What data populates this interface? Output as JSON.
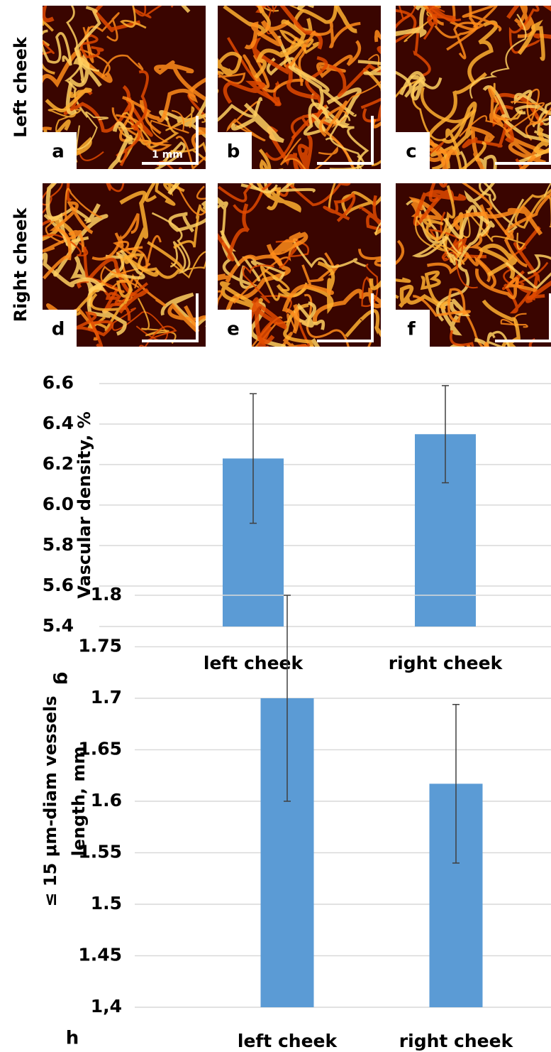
{
  "row_labels": [
    "Left cheek",
    "Right cheek"
  ],
  "panels": [
    "a",
    "b",
    "c",
    "d",
    "e",
    "f"
  ],
  "scale_label": "1 mm",
  "chart_data": [
    {
      "type": "bar",
      "panel": "g",
      "ylabel": [
        "Vascular density, %"
      ],
      "categories": [
        "left cheek",
        "right cheek"
      ],
      "values": [
        6.23,
        6.35
      ],
      "errors": [
        0.32,
        0.24
      ],
      "color": "#5b9bd5",
      "ylim": [
        5.4,
        6.6
      ],
      "yticks": [
        5.4,
        5.6,
        5.8,
        {
          "value": 6,
          "label": "6.0"
        },
        6.2,
        6.4,
        6.6
      ],
      "grid": true
    },
    {
      "type": "bar",
      "panel": "h",
      "ylabel": [
        "≤ 15 μm-diam vessels",
        "length, mm"
      ],
      "categories": [
        "left cheek",
        "right cheek"
      ],
      "values": [
        1.7,
        1.617
      ],
      "errors": [
        0.1,
        0.077
      ],
      "color": "#5b9bd5",
      "ylim": [
        1.4,
        1.8
      ],
      "yticks": [
        {
          "value": 1.4,
          "label": "1,4"
        },
        1.45,
        1.5,
        1.55,
        1.6,
        1.65,
        1.7,
        1.75,
        1.8
      ],
      "grid": true
    }
  ]
}
